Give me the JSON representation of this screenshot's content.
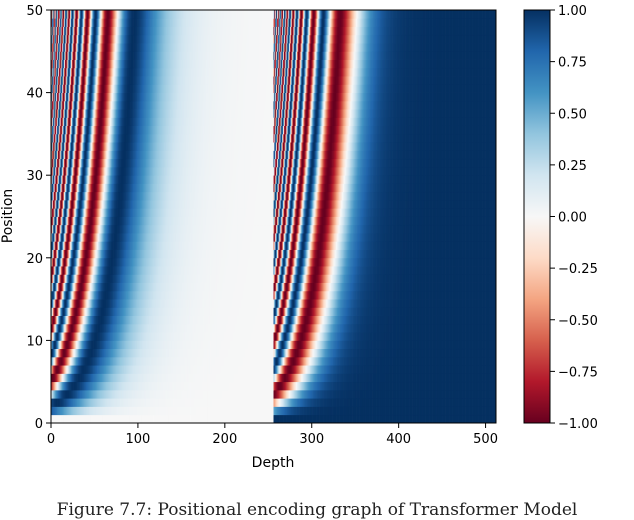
{
  "chart_data": {
    "type": "heatmap",
    "title": "",
    "xlabel": "Depth",
    "ylabel": "Position",
    "x_range": [
      0,
      512
    ],
    "y_range": [
      0,
      50
    ],
    "x_ticks": [
      0,
      100,
      200,
      300,
      400,
      500
    ],
    "y_ticks": [
      0,
      10,
      20,
      30,
      40,
      50
    ],
    "d_model": 512,
    "n_positions": 50,
    "left_half": "sin(pos / 10000^(2i/512)), depth 0–255",
    "right_half": "cos(pos / 10000^(2i/512)), depth 256–511",
    "colormap": "RdBu",
    "colorbar": {
      "range": [
        -1.0,
        1.0
      ],
      "ticks": [
        1.0,
        0.75,
        0.5,
        0.25,
        0.0,
        -0.25,
        -0.5,
        -0.75,
        -1.0
      ],
      "tick_labels": [
        "1.00",
        "0.75",
        "0.50",
        "0.25",
        "0.00",
        "−0.25",
        "−0.50",
        "−0.75",
        "−1.00"
      ]
    },
    "grid": false
  },
  "caption": "Figure 7.7: Positional encoding graph of Transformer Model"
}
